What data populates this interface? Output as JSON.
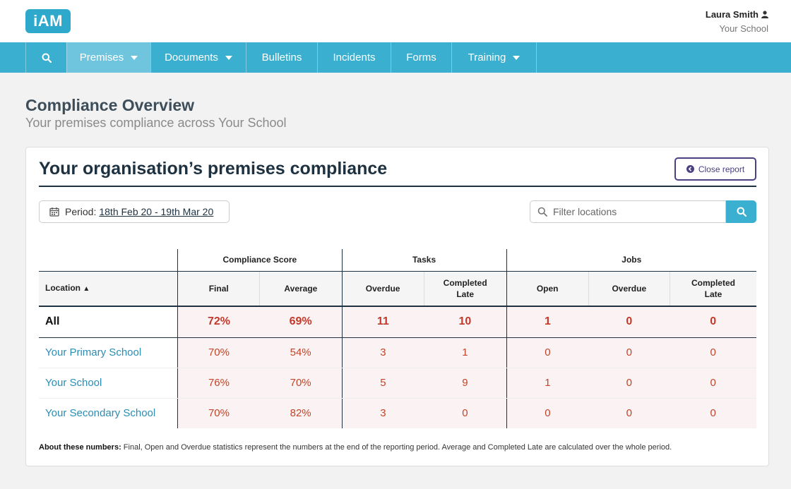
{
  "brand": {
    "logo_text": "iAM",
    "color": "#2ea8cb"
  },
  "user": {
    "name": "Laura Smith",
    "school": "Your School",
    "icon": "user-icon"
  },
  "nav": {
    "search_icon": "search-icon",
    "items": [
      {
        "label": "Premises",
        "dropdown": true,
        "active": true
      },
      {
        "label": "Documents",
        "dropdown": true
      },
      {
        "label": "Bulletins"
      },
      {
        "label": "Incidents"
      },
      {
        "label": "Forms"
      },
      {
        "label": "Training",
        "dropdown": true
      }
    ]
  },
  "page": {
    "title": "Compliance Overview",
    "subtitle": "Your premises compliance across Your School"
  },
  "card": {
    "title": "Your organisation’s premises compliance",
    "close_label": "Close report",
    "period_label": "Period:",
    "period_value": "18th Feb 20 - 19th Mar 20",
    "filter_placeholder": "Filter locations"
  },
  "table": {
    "groups": [
      "Compliance Score",
      "Tasks",
      "Jobs"
    ],
    "location_header": "Location",
    "columns": [
      "Final",
      "Average",
      "Overdue",
      "Completed Late",
      "Open",
      "Overdue",
      "Completed Late"
    ],
    "all": {
      "label": "All",
      "values": [
        "72%",
        "69%",
        "11",
        "10",
        "1",
        "0",
        "0"
      ]
    },
    "rows": [
      {
        "location": "Your Primary School",
        "values": [
          "70%",
          "54%",
          "3",
          "1",
          "0",
          "0",
          "0"
        ]
      },
      {
        "location": "Your School",
        "values": [
          "76%",
          "70%",
          "5",
          "9",
          "1",
          "0",
          "0"
        ]
      },
      {
        "location": "Your Secondary School",
        "values": [
          "70%",
          "82%",
          "3",
          "0",
          "0",
          "0",
          "0"
        ]
      }
    ]
  },
  "footnote": {
    "label": "About these numbers:",
    "text": "Final, Open and Overdue statistics represent the numbers at the end of the reporting period. Average and Completed Late are calculated over the whole period."
  },
  "colors": {
    "nav": "#3bafd0",
    "accent_red": "#c0392b",
    "link": "#2a8db5",
    "close_btn": "#4b4180"
  }
}
